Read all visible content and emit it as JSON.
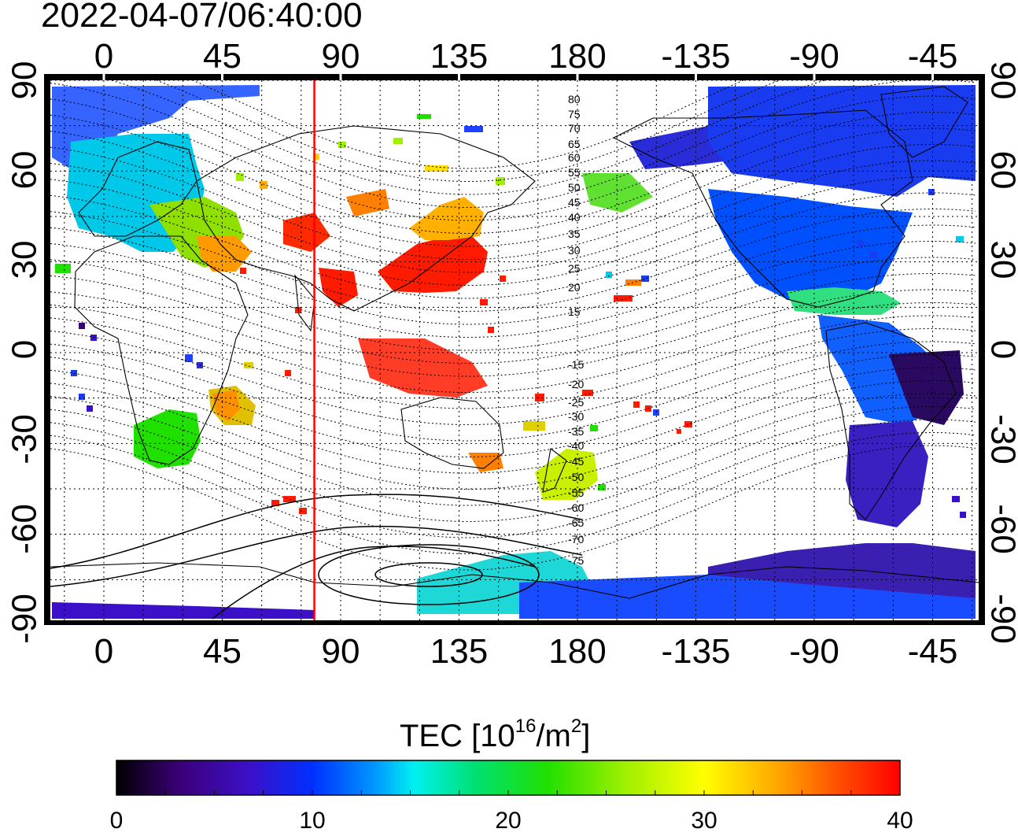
{
  "title": "2022-04-07/06:40:00",
  "map": {
    "lon_ticks_top": [
      "0",
      "45",
      "90",
      "135",
      "180",
      "-135",
      "-90",
      "-45"
    ],
    "lon_ticks_bottom": [
      "0",
      "45",
      "90",
      "135",
      "180",
      "-135",
      "-90",
      "-45"
    ],
    "lat_ticks": [
      "90",
      "60",
      "30",
      "0",
      "-30",
      "-60",
      "-90"
    ],
    "contour_labels": [
      "80",
      "75",
      "70",
      "65",
      "60",
      "55",
      "50",
      "45",
      "40",
      "35",
      "30",
      "25",
      "20",
      "15",
      "-15",
      "-20",
      "-25",
      "-30",
      "-35",
      "-40",
      "-45",
      "-50",
      "-55",
      "-60",
      "-65",
      "-70",
      "-75"
    ],
    "marker_line_color": "#ff0000",
    "marker_longitude": 80
  },
  "colorbar": {
    "label_main": "TEC  [10",
    "label_exp": "16",
    "label_mid": "/m",
    "label_exp2": "2",
    "label_end": "]",
    "ticks": [
      "0",
      "10",
      "20",
      "30",
      "40"
    ],
    "range": [
      0,
      40
    ],
    "colors": [
      "#000000",
      "#3a0077",
      "#3c10c8",
      "#0030ff",
      "#0098ff",
      "#00f0f0",
      "#00e070",
      "#20e000",
      "#a0f000",
      "#ffff00",
      "#ffa000",
      "#ff5000",
      "#ff0000"
    ]
  }
}
